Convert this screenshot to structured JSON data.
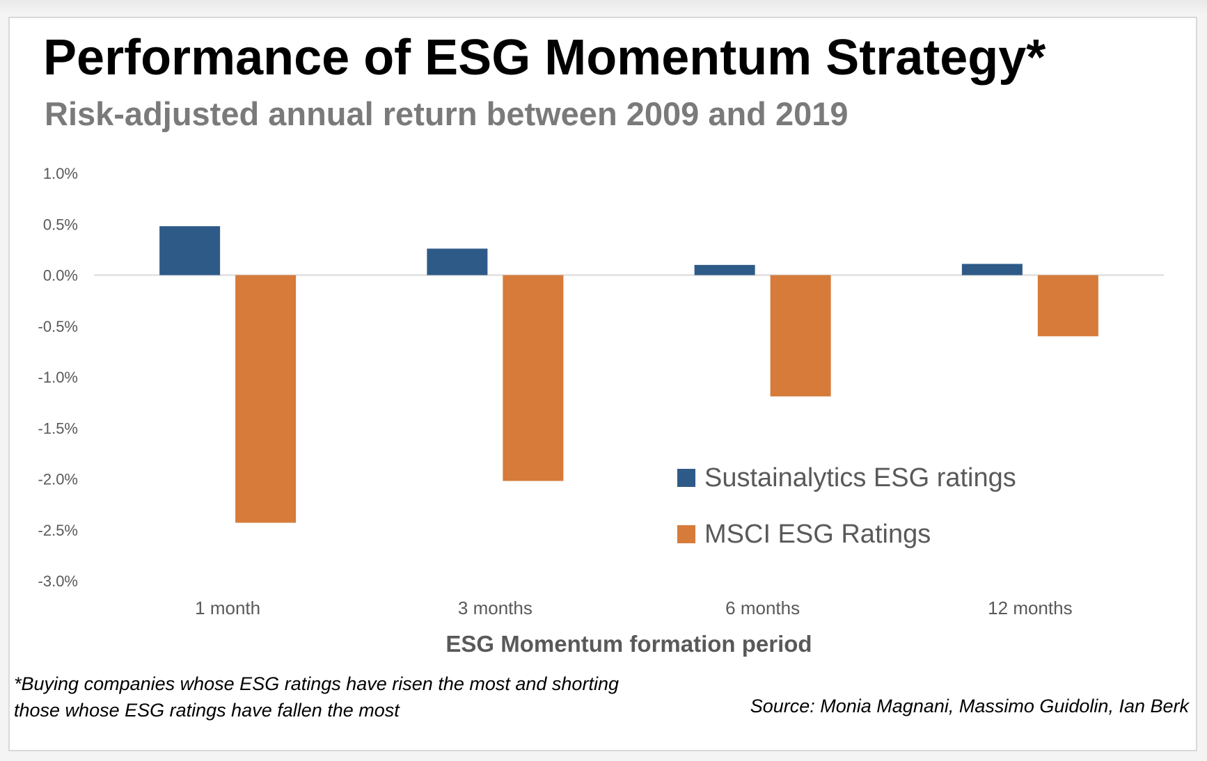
{
  "chart_data": {
    "type": "bar",
    "title": "Performance of ESG Momentum Strategy*",
    "subtitle": "Risk-adjusted annual return between 2009 and 2019",
    "xlabel": "ESG Momentum formation period",
    "ylabel": "",
    "categories": [
      "1 month",
      "3 months",
      "6 months",
      "12 months"
    ],
    "series": [
      {
        "name": "Sustainalytics ESG ratings",
        "color": "#2e5a87",
        "values": [
          0.48,
          0.26,
          0.1,
          0.11
        ]
      },
      {
        "name": "MSCI ESG Ratings",
        "color": "#d67b3a",
        "values": [
          -2.43,
          -2.02,
          -1.19,
          -0.6
        ]
      }
    ],
    "ylim": [
      -3.0,
      1.0
    ],
    "yticks": [
      1.0,
      0.5,
      0.0,
      -0.5,
      -1.0,
      -1.5,
      -2.0,
      -2.5,
      -3.0
    ],
    "ytick_labels": [
      "1.0%",
      "0.5%",
      "0.0%",
      "-0.5%",
      "-1.0%",
      "-1.5%",
      "-2.0%",
      "-2.5%",
      "-3.0%"
    ],
    "grid": false,
    "legend_position": "bottom-right"
  },
  "footnote": "*Buying companies whose ESG ratings have risen the most and shorting those whose ESG ratings have fallen the most",
  "source": "Source: Monia Magnani, Massimo Guidolin, Ian Berk"
}
